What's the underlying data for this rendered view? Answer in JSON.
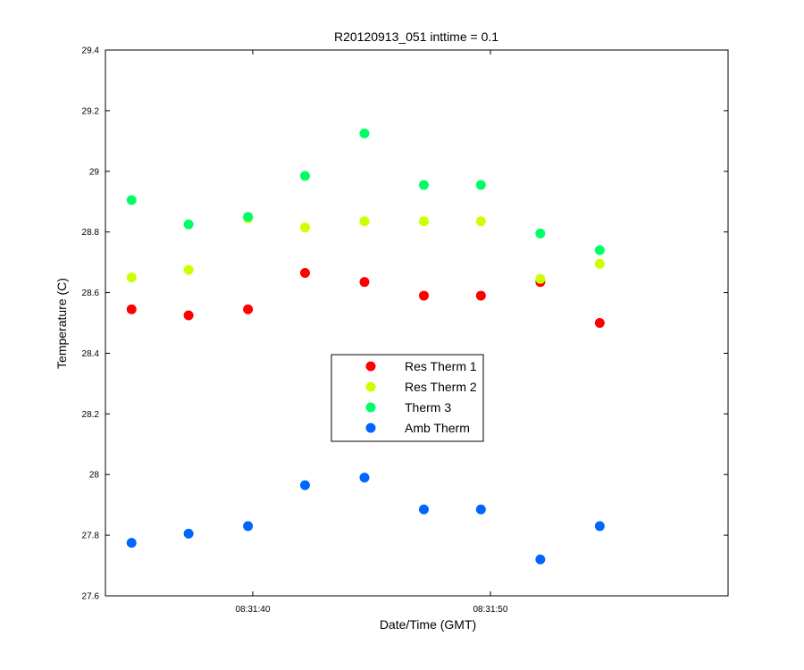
{
  "chart_data": {
    "type": "scatter",
    "title": "R20120913_051 inttime = 0.1",
    "xlabel": "Date/Time (GMT)",
    "ylabel": "Temperature (C)",
    "ylim": [
      27.6,
      29.4
    ],
    "yticks": [
      27.6,
      27.8,
      28,
      28.2,
      28.4,
      28.6,
      28.8,
      29,
      29.2,
      29.4
    ],
    "ytick_labels": [
      "27.6",
      "27.8",
      "28",
      "28.2",
      "28.4",
      "28.6",
      "28.8",
      "29",
      "29.2",
      "29.4"
    ],
    "xlim": [
      "08:31:33.8",
      "08:32:00"
    ],
    "xticks": [
      "08:31:40",
      "08:31:50"
    ],
    "x": [
      "08:31:34.9",
      "08:31:37.3",
      "08:31:39.8",
      "08:31:42.2",
      "08:31:44.7",
      "08:31:47.2",
      "08:31:49.6",
      "08:31:52.1",
      "08:31:54.6"
    ],
    "series": [
      {
        "name": "Res Therm 1",
        "color": "#ff0000",
        "values": [
          28.545,
          28.525,
          28.545,
          28.665,
          28.635,
          28.59,
          28.59,
          28.635,
          28.5
        ]
      },
      {
        "name": "Res Therm 2",
        "color": "#ccff00",
        "values": [
          28.65,
          28.675,
          28.845,
          28.815,
          28.835,
          28.835,
          28.835,
          28.645,
          28.695
        ]
      },
      {
        "name": "Therm 3",
        "color": "#00ff66",
        "values": [
          28.905,
          28.825,
          28.85,
          28.985,
          29.125,
          28.955,
          28.955,
          28.795,
          28.74
        ]
      },
      {
        "name": "Amb Therm",
        "color": "#0066ff",
        "values": [
          27.775,
          27.805,
          27.83,
          27.965,
          27.99,
          27.885,
          27.885,
          27.72,
          27.83
        ]
      }
    ],
    "legend_position": "center",
    "grid": false
  }
}
